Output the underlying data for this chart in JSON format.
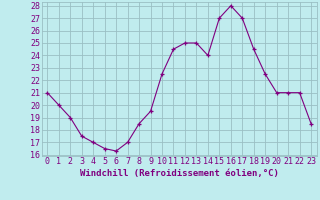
{
  "x": [
    0,
    1,
    2,
    3,
    4,
    5,
    6,
    7,
    8,
    9,
    10,
    11,
    12,
    13,
    14,
    15,
    16,
    17,
    18,
    19,
    20,
    21,
    22,
    23
  ],
  "y": [
    21,
    20,
    19,
    17.5,
    17,
    16.5,
    16.3,
    17,
    18.5,
    19.5,
    22.5,
    24.5,
    25,
    25,
    24,
    27,
    28,
    27,
    24.5,
    22.5,
    21,
    21,
    21,
    18.5
  ],
  "xlabel": "Windchill (Refroidissement éolien,°C)",
  "ylim": [
    16,
    28
  ],
  "xlim": [
    -0.5,
    23.5
  ],
  "yticks": [
    16,
    17,
    18,
    19,
    20,
    21,
    22,
    23,
    24,
    25,
    26,
    27,
    28
  ],
  "xticks": [
    0,
    1,
    2,
    3,
    4,
    5,
    6,
    7,
    8,
    9,
    10,
    11,
    12,
    13,
    14,
    15,
    16,
    17,
    18,
    19,
    20,
    21,
    22,
    23
  ],
  "line_color": "#800080",
  "marker_color": "#800080",
  "bg_color": "#c0ecee",
  "grid_color": "#9abfc4",
  "xlabel_fontsize": 6.5,
  "tick_fontsize": 6.0,
  "marker": "+"
}
